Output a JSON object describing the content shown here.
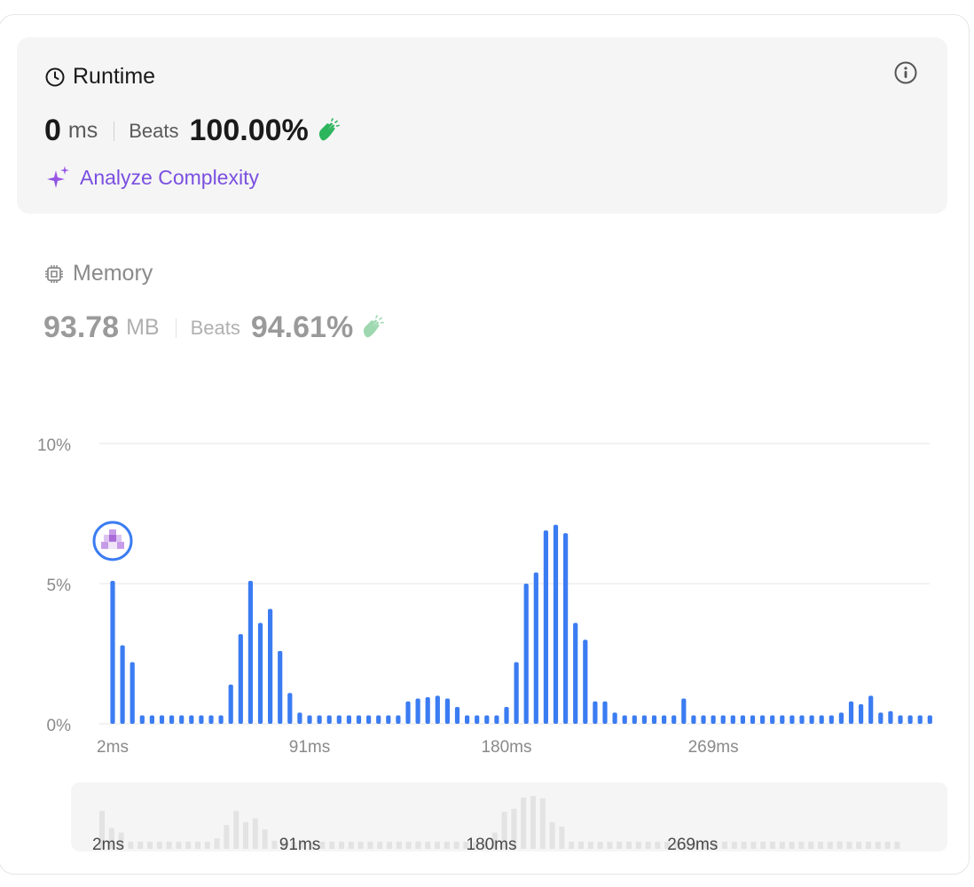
{
  "runtime": {
    "title": "Runtime",
    "value": "0",
    "unit": "ms",
    "beats_label": "Beats",
    "beats_value": "100.00%",
    "analyze_label": "Analyze Complexity"
  },
  "memory": {
    "title": "Memory",
    "value": "93.78",
    "unit": "MB",
    "beats_label": "Beats",
    "beats_value": "94.61%"
  },
  "colors": {
    "bar": "#3b7cf2",
    "accent_purple": "#7a4fe0",
    "clap_green": "#2db55d",
    "nav_bar": "#e3e3e3"
  },
  "icons": {
    "runtime": "clock-icon",
    "info": "info-icon",
    "clap": "clap-icon",
    "analyze": "sparkle-icon",
    "memory": "chip-icon",
    "marker": "user-avatar-marker"
  },
  "chart_data": {
    "type": "bar",
    "y_ticks": [
      "10%",
      "5%",
      "0%"
    ],
    "ylim": [
      0,
      10
    ],
    "x_ticks": [
      {
        "label": "2ms",
        "index": 0
      },
      {
        "label": "91ms",
        "index": 20
      },
      {
        "label": "180ms",
        "index": 40
      },
      {
        "label": "269ms",
        "index": 61
      }
    ],
    "values": [
      5.1,
      2.8,
      2.2,
      0.3,
      0.3,
      0.3,
      0.3,
      0.3,
      0.3,
      0.3,
      0.3,
      0.3,
      1.4,
      3.2,
      5.1,
      3.6,
      4.1,
      2.6,
      1.1,
      0.4,
      0.3,
      0.3,
      0.3,
      0.3,
      0.3,
      0.3,
      0.3,
      0.3,
      0.3,
      0.3,
      0.8,
      0.9,
      0.95,
      1.0,
      0.9,
      0.6,
      0.3,
      0.3,
      0.3,
      0.3,
      0.6,
      2.2,
      5.0,
      5.4,
      6.9,
      7.1,
      6.8,
      3.6,
      3.0,
      0.8,
      0.8,
      0.4,
      0.3,
      0.3,
      0.3,
      0.3,
      0.3,
      0.3,
      0.9,
      0.3,
      0.3,
      0.3,
      0.3,
      0.3,
      0.3,
      0.3,
      0.3,
      0.3,
      0.3,
      0.3,
      0.3,
      0.3,
      0.3,
      0.3,
      0.4,
      0.8,
      0.7,
      1.0,
      0.4,
      0.45,
      0.3,
      0.3,
      0.3,
      0.3
    ],
    "marker_index": 0,
    "grid": true
  }
}
